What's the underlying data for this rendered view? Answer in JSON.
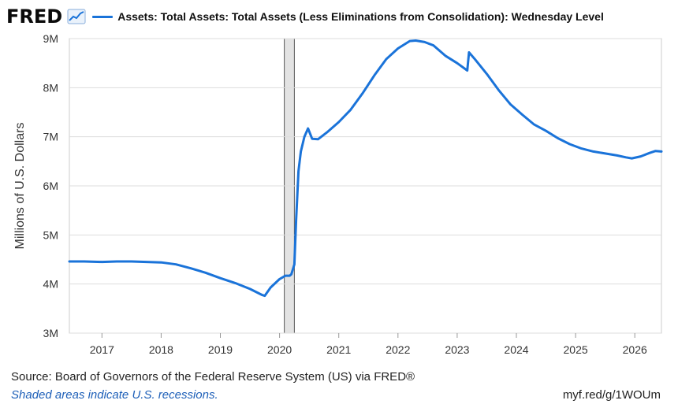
{
  "header": {
    "logo": "FRED",
    "series_title": "Assets: Total Assets: Total Assets (Less Eliminations from Consolidation): Wednesday Level"
  },
  "footer": {
    "source": "Source: Board of Governors of the Federal Reserve System (US) via FRED®",
    "recession_note": "Shaded areas indicate U.S. recessions.",
    "short_url": "myf.red/g/1WOUm"
  },
  "colors": {
    "line": "#1a73d9",
    "recession": "#e3e3e3",
    "gridline": "#dddddd",
    "plot_bg": "#ffffff"
  },
  "icons": [
    "fred-logo",
    "line-chart-icon"
  ],
  "chart_data": {
    "type": "line",
    "title": "Assets: Total Assets: Total Assets (Less Eliminations from Consolidation): Wednesday Level",
    "ylabel": "Millions of U.S. Dollars",
    "xlabel": "",
    "ylim": [
      3000000,
      9000000
    ],
    "xlim": [
      2016.45,
      2026.45
    ],
    "y_ticks": [
      3000000,
      4000000,
      5000000,
      6000000,
      7000000,
      8000000,
      9000000
    ],
    "y_tick_labels": [
      "3M",
      "4M",
      "5M",
      "6M",
      "7M",
      "8M",
      "9M"
    ],
    "x_ticks": [
      2017,
      2018,
      2019,
      2020,
      2021,
      2022,
      2023,
      2024,
      2025,
      2026
    ],
    "x_tick_labels": [
      "2017",
      "2018",
      "2019",
      "2020",
      "2021",
      "2022",
      "2023",
      "2024",
      "2025",
      "2026"
    ],
    "grid": true,
    "recessions": [
      [
        2020.08,
        2020.25
      ]
    ],
    "series": [
      {
        "name": "Assets: Total Assets: Total Assets (Less Eliminations from Consolidation): Wednesday Level",
        "x": [
          2016.45,
          2016.7,
          2017.0,
          2017.25,
          2017.5,
          2017.75,
          2018.0,
          2018.25,
          2018.5,
          2018.75,
          2019.0,
          2019.25,
          2019.5,
          2019.7,
          2019.75,
          2019.85,
          2020.0,
          2020.1,
          2020.17,
          2020.2,
          2020.25,
          2020.28,
          2020.32,
          2020.36,
          2020.42,
          2020.48,
          2020.55,
          2020.65,
          2020.8,
          2021.0,
          2021.2,
          2021.4,
          2021.6,
          2021.8,
          2022.0,
          2022.2,
          2022.3,
          2022.45,
          2022.6,
          2022.8,
          2023.0,
          2023.17,
          2023.2,
          2023.3,
          2023.5,
          2023.7,
          2023.9,
          2024.1,
          2024.3,
          2024.5,
          2024.7,
          2024.9,
          2025.1,
          2025.3,
          2025.5,
          2025.7,
          2025.85,
          2025.95,
          2026.1,
          2026.25,
          2026.35,
          2026.45
        ],
        "values": [
          4460000,
          4460000,
          4450000,
          4460000,
          4460000,
          4450000,
          4440000,
          4400000,
          4320000,
          4230000,
          4120000,
          4020000,
          3900000,
          3780000,
          3760000,
          3930000,
          4100000,
          4170000,
          4170000,
          4200000,
          4400000,
          5300000,
          6300000,
          6700000,
          7000000,
          7170000,
          6960000,
          6950000,
          7090000,
          7300000,
          7550000,
          7880000,
          8250000,
          8580000,
          8800000,
          8950000,
          8960000,
          8930000,
          8860000,
          8650000,
          8500000,
          8350000,
          8720000,
          8580000,
          8280000,
          7950000,
          7660000,
          7450000,
          7250000,
          7120000,
          6970000,
          6850000,
          6760000,
          6700000,
          6660000,
          6620000,
          6580000,
          6560000,
          6600000,
          6670000,
          6710000,
          6700000
        ]
      }
    ]
  }
}
